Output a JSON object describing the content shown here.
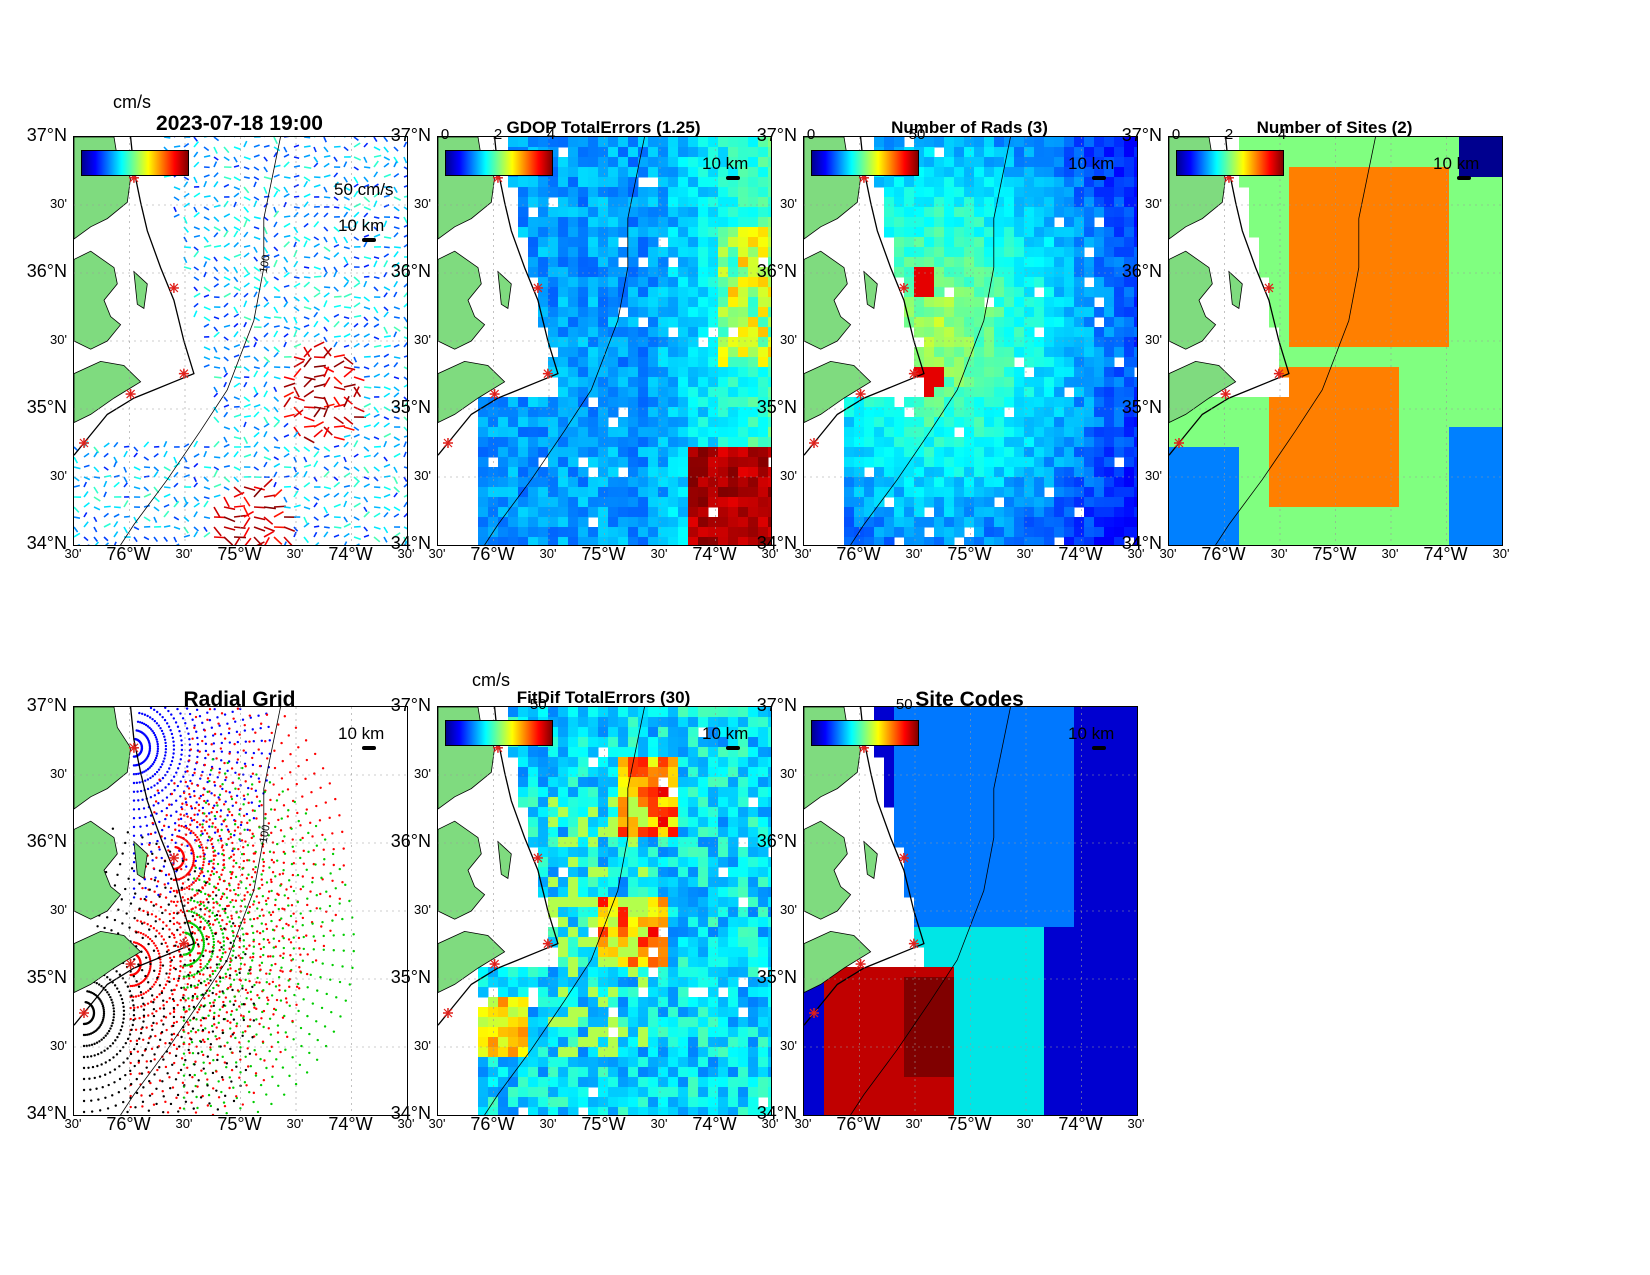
{
  "panels": [
    {
      "id": "p1",
      "title": "2023-07-18 19:00",
      "cbar_ticks": [],
      "unit": "cm/s",
      "scale_label": "10 km",
      "extra_label": "50 cm/s",
      "type": "vectors"
    },
    {
      "id": "p2",
      "title": "GDOP TotalErrors (1.25)",
      "cbar_ticks": [
        "0",
        "2",
        "4"
      ],
      "unit": "",
      "scale_label": "10 km",
      "type": "heat",
      "contour": "1.25"
    },
    {
      "id": "p3",
      "title": "Number of Rads (3)",
      "cbar_ticks": [
        "0",
        "50"
      ],
      "unit": "",
      "scale_label": "10 km",
      "type": "heat"
    },
    {
      "id": "p4",
      "title": "Number of Sites (2)",
      "cbar_ticks": [
        "0",
        "2",
        "4"
      ],
      "unit": "",
      "scale_label": "10 km",
      "type": "sites"
    },
    {
      "id": "p5",
      "title": "Radial Grid",
      "cbar_ticks": [],
      "unit": "",
      "scale_label": "10 km",
      "type": "grid"
    },
    {
      "id": "p6",
      "title": "FitDif TotalErrors (30)",
      "cbar_ticks": [
        "50"
      ],
      "unit": "cm/s",
      "scale_label": "10 km",
      "type": "heat",
      "contour": "30"
    },
    {
      "id": "p7",
      "title": "Site Codes",
      "cbar_ticks": [
        "50"
      ],
      "unit": "",
      "scale_label": "10 km",
      "type": "codes"
    }
  ],
  "axes": {
    "y_labels": [
      "37°N",
      "30'",
      "36°N",
      "30'",
      "35°N",
      "30'",
      "34°N"
    ],
    "x_labels": [
      "30'",
      "76°W",
      "30'",
      "75°W",
      "30'",
      "74°W",
      "30'"
    ]
  },
  "contour_labels": {
    "shelf": "100"
  },
  "colors": {
    "land": "#7fdb7f",
    "coast": "#000000",
    "site_marker": "#e0201b"
  }
}
